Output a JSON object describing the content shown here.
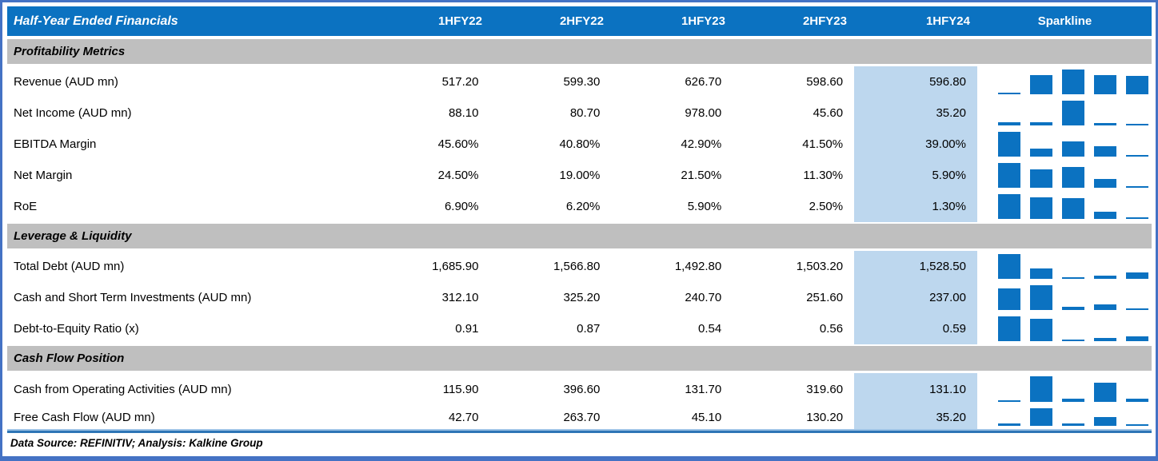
{
  "title": "Half-Year Ended Financials",
  "columns": [
    "1HFY22",
    "2HFY22",
    "1HFY23",
    "2HFY23",
    "1HFY24"
  ],
  "sparkline_header": "Sparkline",
  "sections": [
    {
      "title": "Profitability Metrics",
      "rows": [
        {
          "label": "Revenue (AUD mn)",
          "values": [
            "517.20",
            "599.30",
            "626.70",
            "598.60",
            "596.80"
          ],
          "nums": [
            517.2,
            599.3,
            626.7,
            598.6,
            596.8
          ]
        },
        {
          "label": "Net Income (AUD mn)",
          "values": [
            "88.10",
            "80.70",
            "978.00",
            "45.60",
            "35.20"
          ],
          "nums": [
            88.1,
            80.7,
            978.0,
            45.6,
            35.2
          ]
        },
        {
          "label": "EBITDA Margin",
          "values": [
            "45.60%",
            "40.80%",
            "42.90%",
            "41.50%",
            "39.00%"
          ],
          "nums": [
            45.6,
            40.8,
            42.9,
            41.5,
            39.0
          ]
        },
        {
          "label": "Net Margin",
          "values": [
            "24.50%",
            "19.00%",
            "21.50%",
            "11.30%",
            "5.90%"
          ],
          "nums": [
            24.5,
            19.0,
            21.5,
            11.3,
            5.9
          ]
        },
        {
          "label": "RoE",
          "values": [
            "6.90%",
            "6.20%",
            "5.90%",
            "2.50%",
            "1.30%"
          ],
          "nums": [
            6.9,
            6.2,
            5.9,
            2.5,
            1.3
          ]
        }
      ]
    },
    {
      "title": "Leverage & Liquidity",
      "rows": [
        {
          "label": "Total Debt (AUD mn)",
          "values": [
            "1,685.90",
            "1,566.80",
            "1,492.80",
            "1,503.20",
            "1,528.50"
          ],
          "nums": [
            1685.9,
            1566.8,
            1492.8,
            1503.2,
            1528.5
          ]
        },
        {
          "label": "Cash and Short Term Investments (AUD mn)",
          "values": [
            "312.10",
            "325.20",
            "240.70",
            "251.60",
            "237.00"
          ],
          "nums": [
            312.1,
            325.2,
            240.7,
            251.6,
            237.0
          ]
        },
        {
          "label": "Debt-to-Equity Ratio (x)",
          "values": [
            "0.91",
            "0.87",
            "0.54",
            "0.56",
            "0.59"
          ],
          "nums": [
            0.91,
            0.87,
            0.54,
            0.56,
            0.59
          ]
        }
      ]
    },
    {
      "title": "Cash Flow Position",
      "rows": [
        {
          "label": "Cash from Operating Activities (AUD mn)",
          "values": [
            "115.90",
            "396.60",
            "131.70",
            "319.60",
            "131.10"
          ],
          "nums": [
            115.9,
            396.6,
            131.7,
            319.6,
            131.1
          ]
        },
        {
          "label": "Free Cash Flow (AUD mn)",
          "values": [
            "42.70",
            "263.70",
            "45.10",
            "130.20",
            "35.20"
          ],
          "nums": [
            42.7,
            263.7,
            45.1,
            130.2,
            35.2
          ]
        }
      ]
    }
  ],
  "footer": "Data Source: REFINITIV; Analysis: Kalkine Group",
  "colors": {
    "header_blue": "#0B72C1",
    "section_gray": "#BFBFBF",
    "highlight_blue": "#BDD7EE",
    "border_blue": "#4472C4",
    "separator_light": "#9DC3E6",
    "separator_dark": "#2E75B6",
    "sparkline_blue": "#0B72C1"
  },
  "chart_data": {
    "type": "table",
    "note": "Each row has an inline column sparkline (min-max scaled bars) of its 5 period values",
    "categories": [
      "1HFY22",
      "2HFY22",
      "1HFY23",
      "2HFY23",
      "1HFY24"
    ],
    "series": [
      {
        "name": "Revenue (AUD mn)",
        "values": [
          517.2,
          599.3,
          626.7,
          598.6,
          596.8
        ]
      },
      {
        "name": "Net Income (AUD mn)",
        "values": [
          88.1,
          80.7,
          978.0,
          45.6,
          35.2
        ]
      },
      {
        "name": "EBITDA Margin (%)",
        "values": [
          45.6,
          40.8,
          42.9,
          41.5,
          39.0
        ]
      },
      {
        "name": "Net Margin (%)",
        "values": [
          24.5,
          19.0,
          21.5,
          11.3,
          5.9
        ]
      },
      {
        "name": "RoE (%)",
        "values": [
          6.9,
          6.2,
          5.9,
          2.5,
          1.3
        ]
      },
      {
        "name": "Total Debt (AUD mn)",
        "values": [
          1685.9,
          1566.8,
          1492.8,
          1503.2,
          1528.5
        ]
      },
      {
        "name": "Cash and Short Term Investments (AUD mn)",
        "values": [
          312.1,
          325.2,
          240.7,
          251.6,
          237.0
        ]
      },
      {
        "name": "Debt-to-Equity Ratio (x)",
        "values": [
          0.91,
          0.87,
          0.54,
          0.56,
          0.59
        ]
      },
      {
        "name": "Cash from Operating Activities (AUD mn)",
        "values": [
          115.9,
          396.6,
          131.7,
          319.6,
          131.1
        ]
      },
      {
        "name": "Free Cash Flow (AUD mn)",
        "values": [
          42.7,
          263.7,
          45.1,
          130.2,
          35.2
        ]
      }
    ]
  }
}
